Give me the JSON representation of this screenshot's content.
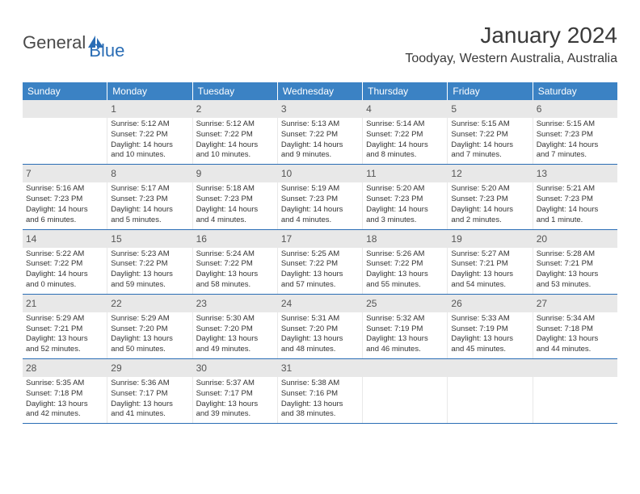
{
  "logo": {
    "part1": "General",
    "part2": "Blue"
  },
  "header": {
    "month": "January 2024",
    "location": "Toodyay, Western Australia, Australia"
  },
  "colors": {
    "header_bg": "#3b82c4",
    "header_text": "#ffffff",
    "daynum_bg": "#e8e8e8",
    "daynum_text": "#555555",
    "body_text": "#333333",
    "divider": "#2a6db5",
    "logo_gray": "#4a4a4a",
    "logo_blue": "#2a6db5"
  },
  "day_names": [
    "Sunday",
    "Monday",
    "Tuesday",
    "Wednesday",
    "Thursday",
    "Friday",
    "Saturday"
  ],
  "weeks": [
    [
      {
        "blank": true
      },
      {
        "n": "1",
        "sr": "Sunrise: 5:12 AM",
        "ss": "Sunset: 7:22 PM",
        "d1": "Daylight: 14 hours",
        "d2": "and 10 minutes."
      },
      {
        "n": "2",
        "sr": "Sunrise: 5:12 AM",
        "ss": "Sunset: 7:22 PM",
        "d1": "Daylight: 14 hours",
        "d2": "and 10 minutes."
      },
      {
        "n": "3",
        "sr": "Sunrise: 5:13 AM",
        "ss": "Sunset: 7:22 PM",
        "d1": "Daylight: 14 hours",
        "d2": "and 9 minutes."
      },
      {
        "n": "4",
        "sr": "Sunrise: 5:14 AM",
        "ss": "Sunset: 7:22 PM",
        "d1": "Daylight: 14 hours",
        "d2": "and 8 minutes."
      },
      {
        "n": "5",
        "sr": "Sunrise: 5:15 AM",
        "ss": "Sunset: 7:22 PM",
        "d1": "Daylight: 14 hours",
        "d2": "and 7 minutes."
      },
      {
        "n": "6",
        "sr": "Sunrise: 5:15 AM",
        "ss": "Sunset: 7:23 PM",
        "d1": "Daylight: 14 hours",
        "d2": "and 7 minutes."
      }
    ],
    [
      {
        "n": "7",
        "sr": "Sunrise: 5:16 AM",
        "ss": "Sunset: 7:23 PM",
        "d1": "Daylight: 14 hours",
        "d2": "and 6 minutes."
      },
      {
        "n": "8",
        "sr": "Sunrise: 5:17 AM",
        "ss": "Sunset: 7:23 PM",
        "d1": "Daylight: 14 hours",
        "d2": "and 5 minutes."
      },
      {
        "n": "9",
        "sr": "Sunrise: 5:18 AM",
        "ss": "Sunset: 7:23 PM",
        "d1": "Daylight: 14 hours",
        "d2": "and 4 minutes."
      },
      {
        "n": "10",
        "sr": "Sunrise: 5:19 AM",
        "ss": "Sunset: 7:23 PM",
        "d1": "Daylight: 14 hours",
        "d2": "and 4 minutes."
      },
      {
        "n": "11",
        "sr": "Sunrise: 5:20 AM",
        "ss": "Sunset: 7:23 PM",
        "d1": "Daylight: 14 hours",
        "d2": "and 3 minutes."
      },
      {
        "n": "12",
        "sr": "Sunrise: 5:20 AM",
        "ss": "Sunset: 7:23 PM",
        "d1": "Daylight: 14 hours",
        "d2": "and 2 minutes."
      },
      {
        "n": "13",
        "sr": "Sunrise: 5:21 AM",
        "ss": "Sunset: 7:23 PM",
        "d1": "Daylight: 14 hours",
        "d2": "and 1 minute."
      }
    ],
    [
      {
        "n": "14",
        "sr": "Sunrise: 5:22 AM",
        "ss": "Sunset: 7:22 PM",
        "d1": "Daylight: 14 hours",
        "d2": "and 0 minutes."
      },
      {
        "n": "15",
        "sr": "Sunrise: 5:23 AM",
        "ss": "Sunset: 7:22 PM",
        "d1": "Daylight: 13 hours",
        "d2": "and 59 minutes."
      },
      {
        "n": "16",
        "sr": "Sunrise: 5:24 AM",
        "ss": "Sunset: 7:22 PM",
        "d1": "Daylight: 13 hours",
        "d2": "and 58 minutes."
      },
      {
        "n": "17",
        "sr": "Sunrise: 5:25 AM",
        "ss": "Sunset: 7:22 PM",
        "d1": "Daylight: 13 hours",
        "d2": "and 57 minutes."
      },
      {
        "n": "18",
        "sr": "Sunrise: 5:26 AM",
        "ss": "Sunset: 7:22 PM",
        "d1": "Daylight: 13 hours",
        "d2": "and 55 minutes."
      },
      {
        "n": "19",
        "sr": "Sunrise: 5:27 AM",
        "ss": "Sunset: 7:21 PM",
        "d1": "Daylight: 13 hours",
        "d2": "and 54 minutes."
      },
      {
        "n": "20",
        "sr": "Sunrise: 5:28 AM",
        "ss": "Sunset: 7:21 PM",
        "d1": "Daylight: 13 hours",
        "d2": "and 53 minutes."
      }
    ],
    [
      {
        "n": "21",
        "sr": "Sunrise: 5:29 AM",
        "ss": "Sunset: 7:21 PM",
        "d1": "Daylight: 13 hours",
        "d2": "and 52 minutes."
      },
      {
        "n": "22",
        "sr": "Sunrise: 5:29 AM",
        "ss": "Sunset: 7:20 PM",
        "d1": "Daylight: 13 hours",
        "d2": "and 50 minutes."
      },
      {
        "n": "23",
        "sr": "Sunrise: 5:30 AM",
        "ss": "Sunset: 7:20 PM",
        "d1": "Daylight: 13 hours",
        "d2": "and 49 minutes."
      },
      {
        "n": "24",
        "sr": "Sunrise: 5:31 AM",
        "ss": "Sunset: 7:20 PM",
        "d1": "Daylight: 13 hours",
        "d2": "and 48 minutes."
      },
      {
        "n": "25",
        "sr": "Sunrise: 5:32 AM",
        "ss": "Sunset: 7:19 PM",
        "d1": "Daylight: 13 hours",
        "d2": "and 46 minutes."
      },
      {
        "n": "26",
        "sr": "Sunrise: 5:33 AM",
        "ss": "Sunset: 7:19 PM",
        "d1": "Daylight: 13 hours",
        "d2": "and 45 minutes."
      },
      {
        "n": "27",
        "sr": "Sunrise: 5:34 AM",
        "ss": "Sunset: 7:18 PM",
        "d1": "Daylight: 13 hours",
        "d2": "and 44 minutes."
      }
    ],
    [
      {
        "n": "28",
        "sr": "Sunrise: 5:35 AM",
        "ss": "Sunset: 7:18 PM",
        "d1": "Daylight: 13 hours",
        "d2": "and 42 minutes."
      },
      {
        "n": "29",
        "sr": "Sunrise: 5:36 AM",
        "ss": "Sunset: 7:17 PM",
        "d1": "Daylight: 13 hours",
        "d2": "and 41 minutes."
      },
      {
        "n": "30",
        "sr": "Sunrise: 5:37 AM",
        "ss": "Sunset: 7:17 PM",
        "d1": "Daylight: 13 hours",
        "d2": "and 39 minutes."
      },
      {
        "n": "31",
        "sr": "Sunrise: 5:38 AM",
        "ss": "Sunset: 7:16 PM",
        "d1": "Daylight: 13 hours",
        "d2": "and 38 minutes."
      },
      {
        "blank": true
      },
      {
        "blank": true
      },
      {
        "blank": true
      }
    ]
  ]
}
